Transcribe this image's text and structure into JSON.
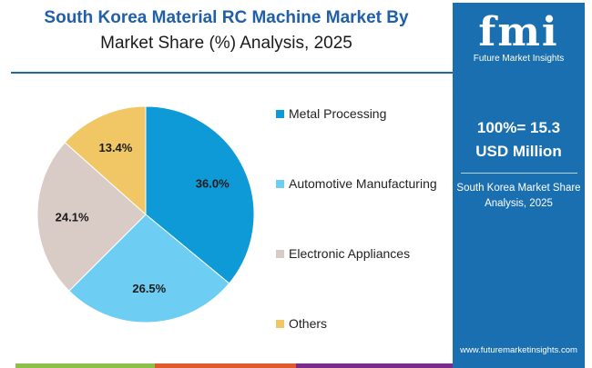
{
  "title": {
    "line1": "South Korea Material RC Machine Market By",
    "line2": "Market Share (%) Analysis, 2025"
  },
  "chart_data": {
    "type": "pie",
    "categories": [
      "Metal Processing",
      "Automotive Manufacturing",
      "Electronic Appliances",
      "Others"
    ],
    "values": [
      36.0,
      26.5,
      24.1,
      13.4
    ],
    "labels": [
      "36.0%",
      "26.5%",
      "24.1%",
      "13.4%"
    ],
    "colors": [
      "#0e9ad7",
      "#6dcdf3",
      "#d9cbc6",
      "#f0c764"
    ],
    "legend": "right"
  },
  "panel": {
    "logo": "fmi",
    "logo_sub": "Future Market Insights",
    "total_line1": "100%= 15.3",
    "total_line2": "USD Million",
    "subtitle_line1": "South Korea Market Share",
    "subtitle_line2": "Analysis, 2025",
    "url": "www.futuremarketinsights.com"
  },
  "bottom_bar_colors": [
    "#8dc04a",
    "#e05a2b",
    "#7b2b8c"
  ]
}
